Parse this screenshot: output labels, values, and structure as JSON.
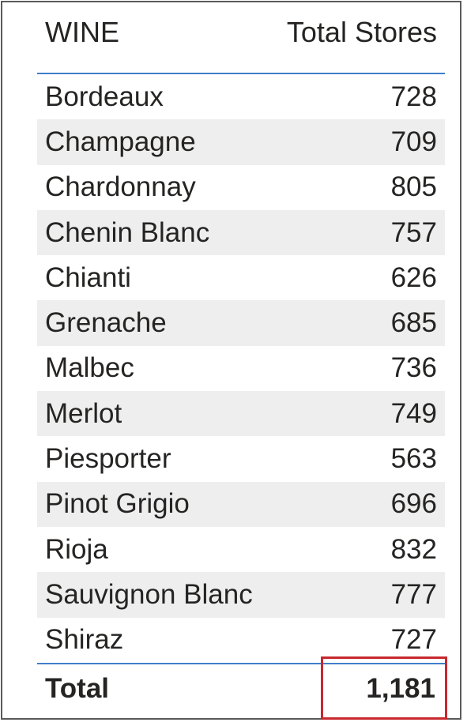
{
  "table": {
    "header": {
      "name": "WINE",
      "value": "Total Stores"
    },
    "rows": [
      {
        "name": "Bordeaux",
        "value": "728"
      },
      {
        "name": "Champagne",
        "value": "709"
      },
      {
        "name": "Chardonnay",
        "value": "805"
      },
      {
        "name": "Chenin Blanc",
        "value": "757"
      },
      {
        "name": "Chianti",
        "value": "626"
      },
      {
        "name": "Grenache",
        "value": "685"
      },
      {
        "name": "Malbec",
        "value": "736"
      },
      {
        "name": "Merlot",
        "value": "749"
      },
      {
        "name": "Piesporter",
        "value": "563"
      },
      {
        "name": "Pinot Grigio",
        "value": "696"
      },
      {
        "name": "Rioja",
        "value": "832"
      },
      {
        "name": "Sauvignon Blanc",
        "value": "777"
      },
      {
        "name": "Shiraz",
        "value": "727"
      }
    ],
    "total": {
      "name": "Total",
      "value": "1,181"
    }
  },
  "colors": {
    "header_rule": "#3f7fca",
    "alt_row": "#eeeeee",
    "highlight": "#c8282e",
    "frame": "#5a5a5a"
  }
}
